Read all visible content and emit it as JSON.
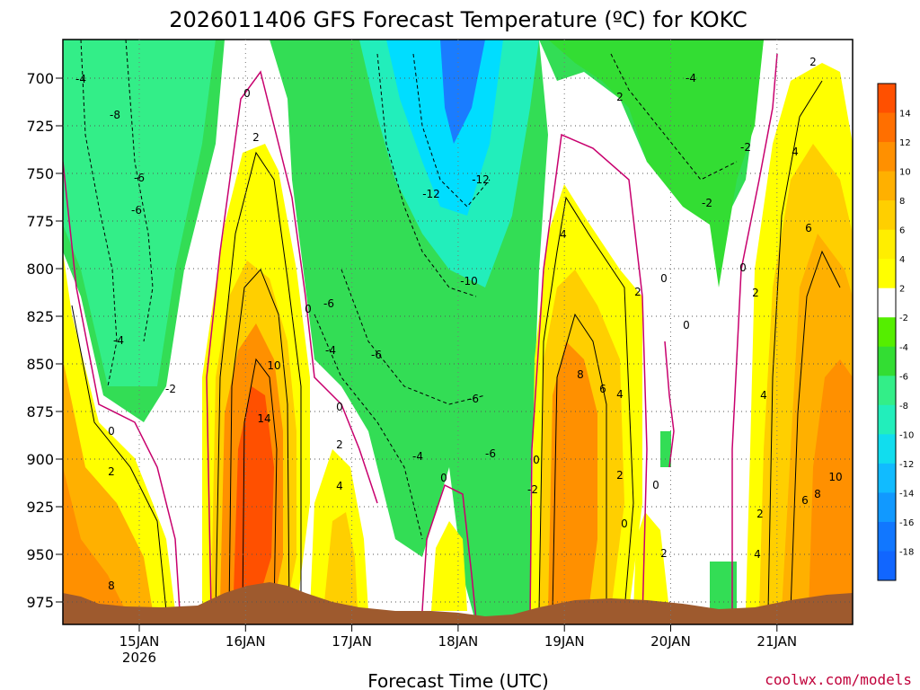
{
  "chart_data": {
    "type": "heatmap",
    "title": "2026011406 GFS Forecast Temperature (ºC) for KOKC",
    "xlabel": "Forecast Time (UTC)",
    "ylabel": "",
    "credit": "coolwx.com/models",
    "y_ticks": [
      "700",
      "725",
      "750",
      "775",
      "800",
      "825",
      "850",
      "875",
      "900",
      "925",
      "950",
      "975"
    ],
    "x_ticks": [
      "15JAN",
      "16JAN",
      "17JAN",
      "18JAN",
      "19JAN",
      "20JAN",
      "21JAN"
    ],
    "x_year": "2026",
    "colorbar": {
      "labels": [
        "14",
        "12",
        "10",
        "8",
        "6",
        "4",
        "2",
        "-2",
        "-4",
        "-6",
        "-8",
        "-10",
        "-12",
        "-14",
        "-16",
        "-18"
      ],
      "colors": [
        "#ff5000",
        "#ff6f00",
        "#ff9000",
        "#ffb000",
        "#ffcf00",
        "#ffee00",
        "#ffff00",
        "#ffffff",
        "#55ee00",
        "#33dd33",
        "#33ee88",
        "#22eebb",
        "#11ddee",
        "#11bbff",
        "#1199ff",
        "#1177ff",
        "#1166ff"
      ]
    },
    "colors": {
      "surface": "#9e5a2e",
      "zero_line": "#c8006e",
      "cold_core": "#00ddff",
      "coldest": "#1a7cff"
    },
    "contour_labels": [
      {
        "text": "-4"
      },
      {
        "text": "-8"
      },
      {
        "text": "-6"
      },
      {
        "text": "-6"
      },
      {
        "text": "-4"
      },
      {
        "text": "-2"
      },
      {
        "text": "0"
      },
      {
        "text": "2"
      },
      {
        "text": "8"
      },
      {
        "text": "0"
      },
      {
        "text": "2"
      },
      {
        "text": "10"
      },
      {
        "text": "14"
      },
      {
        "text": "0"
      },
      {
        "text": "-6"
      },
      {
        "text": "-4"
      },
      {
        "text": "0"
      },
      {
        "text": "2"
      },
      {
        "text": "4"
      },
      {
        "text": "-12"
      },
      {
        "text": "-12"
      },
      {
        "text": "-10"
      },
      {
        "text": "-6"
      },
      {
        "text": "-6"
      },
      {
        "text": "-4"
      },
      {
        "text": "-6"
      },
      {
        "text": "0"
      },
      {
        "text": "-2"
      },
      {
        "text": "0"
      },
      {
        "text": "4"
      },
      {
        "text": "2"
      },
      {
        "text": "8"
      },
      {
        "text": "6"
      },
      {
        "text": "4"
      },
      {
        "text": "2"
      },
      {
        "text": "0"
      },
      {
        "text": "2"
      },
      {
        "text": "0"
      },
      {
        "text": "0"
      },
      {
        "text": "0"
      },
      {
        "text": "2"
      },
      {
        "text": "-4"
      },
      {
        "text": "-2"
      },
      {
        "text": "-2"
      },
      {
        "text": "0"
      },
      {
        "text": "2"
      },
      {
        "text": "2"
      },
      {
        "text": "4"
      },
      {
        "text": "6"
      },
      {
        "text": "4"
      },
      {
        "text": "2"
      },
      {
        "text": "4"
      },
      {
        "text": "6"
      },
      {
        "text": "8"
      },
      {
        "text": "10"
      }
    ]
  }
}
